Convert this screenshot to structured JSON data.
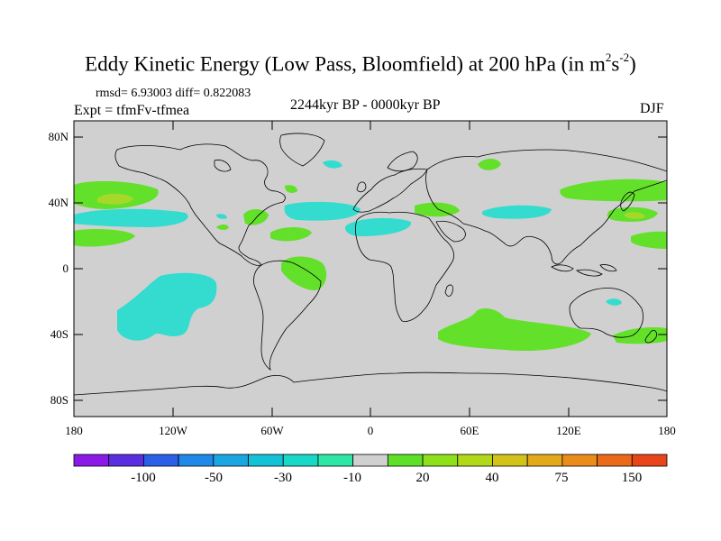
{
  "title": {
    "main": "Eddy Kinetic Energy (Low Pass, Bloomfield) at 200 hPa (in m",
    "sup1": "2",
    "mid": "s",
    "sup2": "-2",
    "end": ")"
  },
  "stats": "rmsd= 6.93003 diff= 0.822083",
  "experiment": "Expt = tfmFv-tfmea",
  "period": "2244kyr BP - 0000kyr BP",
  "season": "DJF",
  "lat_labels": [
    "80N",
    "40N",
    "0",
    "40S",
    "80S"
  ],
  "lon_labels": [
    "180",
    "120W",
    "60W",
    "0",
    "60E",
    "120E",
    "180"
  ],
  "colorbar": {
    "labels": [
      "-100",
      "-50",
      "-30",
      "-10",
      "20",
      "40",
      "75",
      "150"
    ],
    "colors": [
      "#8a1ae6",
      "#5a2ee0",
      "#2b5fe6",
      "#1f88e8",
      "#1aa6e0",
      "#14c2d8",
      "#1ad8c8",
      "#2ee6a6",
      "#d0d0d0",
      "#5fe028",
      "#8ee01a",
      "#b2d81a",
      "#d2c21a",
      "#e2aa1a",
      "#ea8c1a",
      "#ea6a1a",
      "#e8461a"
    ]
  },
  "map": {
    "background": "#d0d0d0",
    "coast": "#000000",
    "positive": "#63e02a",
    "positive_strong": "#a6d82a",
    "negative": "#33dccf"
  }
}
